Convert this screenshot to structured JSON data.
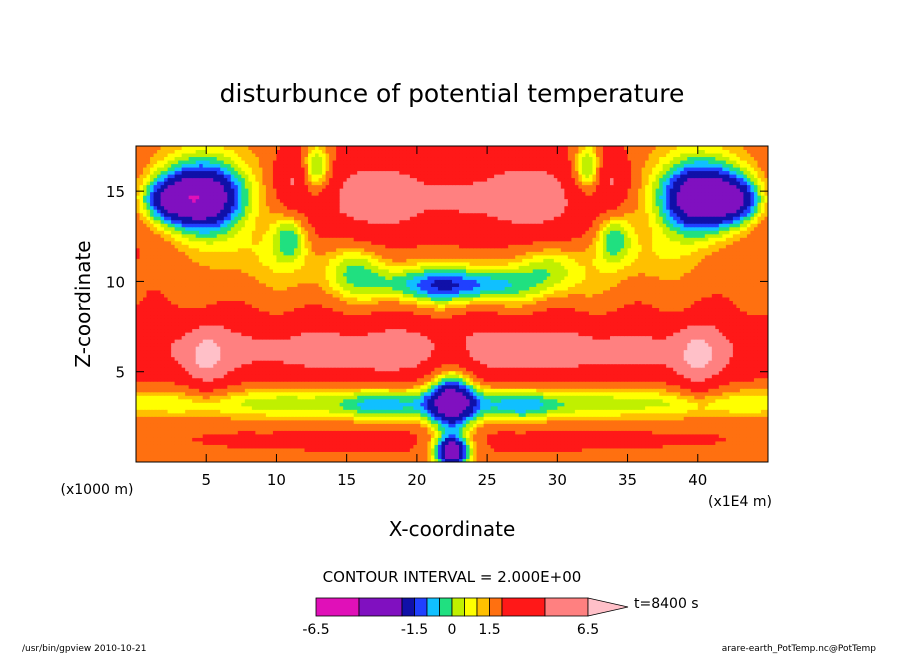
{
  "chart_data": {
    "type": "heatmap",
    "title": "disturbunce of potential temperature",
    "xlabel": "X-coordinate",
    "ylabel": "Z-coordinate",
    "x_unit": "(x1E4 m)",
    "y_unit": "(x1000 m)",
    "xlim": [
      0,
      45
    ],
    "ylim": [
      0,
      17.5
    ],
    "xticks": [
      5,
      10,
      15,
      20,
      25,
      30,
      35,
      40
    ],
    "yticks": [
      5,
      10,
      15
    ],
    "contour_interval_text": "CONTOUR INTERVAL = 2.000E+00",
    "time_text": "t=8400 s",
    "colorbar": {
      "levels": [
        -6.5,
        -4.5,
        -2.5,
        -1.5,
        -1,
        -0.5,
        0,
        0.5,
        1,
        1.5,
        2.5,
        4.5,
        6.5
      ],
      "colors": [
        "#e010b8",
        "#8010c0",
        "#1010a8",
        "#2040ff",
        "#10c0ff",
        "#20e080",
        "#c0f000",
        "#ffff00",
        "#ffc000",
        "#ff7010",
        "#ff1818",
        "#ff8080",
        "#ffc0c8"
      ],
      "tick_labels": [
        "-6.5",
        "-1.5",
        "0",
        "1.5",
        "6.5"
      ]
    },
    "blobs": [
      {
        "x": 0.0,
        "z": 14.6,
        "rx": 6.5,
        "rz": 4.0,
        "v": 2.0
      },
      {
        "x": 45.0,
        "z": 14.6,
        "rx": 6.5,
        "rz": 4.0,
        "v": 2.0
      },
      {
        "x": 3.5,
        "z": 15.0,
        "rx": 4.8,
        "rz": 3.0,
        "v": -3.0
      },
      {
        "x": 41.5,
        "z": 15.0,
        "rx": 4.8,
        "rz": 3.0,
        "v": -3.0
      },
      {
        "x": 4.8,
        "z": 14.6,
        "rx": 2.8,
        "rz": 1.8,
        "v": -4.5
      },
      {
        "x": 40.2,
        "z": 14.6,
        "rx": 2.8,
        "rz": 1.8,
        "v": -4.5
      },
      {
        "x": 2.0,
        "z": 14.5,
        "rx": 1.8,
        "rz": 1.2,
        "v": -2.5
      },
      {
        "x": 43.0,
        "z": 14.5,
        "rx": 1.8,
        "rz": 1.2,
        "v": -2.5
      },
      {
        "x": 22.5,
        "z": 9.8,
        "rx": 5.5,
        "rz": 1.0,
        "v": -2.8
      },
      {
        "x": 22.5,
        "z": 10.5,
        "rx": 10.5,
        "rz": 2.2,
        "v": -1.0
      },
      {
        "x": 15.5,
        "z": 11.0,
        "rx": 2.2,
        "rz": 1.5,
        "v": -1.6
      },
      {
        "x": 29.5,
        "z": 11.0,
        "rx": 2.2,
        "rz": 1.5,
        "v": -1.6
      },
      {
        "x": 11.0,
        "z": 12.6,
        "rx": 1.3,
        "rz": 1.5,
        "v": -2.4
      },
      {
        "x": 34.0,
        "z": 12.6,
        "rx": 1.3,
        "rz": 1.5,
        "v": -2.4
      },
      {
        "x": 12.8,
        "z": 16.2,
        "rx": 1.2,
        "rz": 1.5,
        "v": -3.5
      },
      {
        "x": 32.2,
        "z": 16.2,
        "rx": 1.2,
        "rz": 1.5,
        "v": -3.5
      },
      {
        "x": 8.5,
        "z": 11.5,
        "rx": 4.0,
        "rz": 1.5,
        "v": -0.7
      },
      {
        "x": 36.5,
        "z": 11.5,
        "rx": 4.0,
        "rz": 1.5,
        "v": -0.7
      },
      {
        "x": 17.0,
        "z": 14.6,
        "rx": 5.2,
        "rz": 2.8,
        "v": 3.6
      },
      {
        "x": 28.0,
        "z": 14.6,
        "rx": 5.2,
        "rz": 2.8,
        "v": 3.6
      },
      {
        "x": 11.2,
        "z": 15.8,
        "rx": 1.2,
        "rz": 1.8,
        "v": 2.4
      },
      {
        "x": 33.8,
        "z": 15.8,
        "rx": 1.2,
        "rz": 1.8,
        "v": 2.4
      },
      {
        "x": 22.5,
        "z": 14.5,
        "rx": 1.8,
        "rz": 3.5,
        "v": 0.5
      },
      {
        "x": 22.5,
        "z": 6.2,
        "rx": 30.0,
        "rz": 1.9,
        "v": 3.6
      },
      {
        "x": 5.0,
        "z": 5.8,
        "rx": 1.6,
        "rz": 1.9,
        "v": 3.0
      },
      {
        "x": 40.0,
        "z": 5.8,
        "rx": 1.6,
        "rz": 1.9,
        "v": 3.0
      },
      {
        "x": 17.5,
        "z": 6.0,
        "rx": 1.0,
        "rz": 0.7,
        "v": 1.0
      },
      {
        "x": 27.5,
        "z": 6.0,
        "rx": 1.0,
        "rz": 0.7,
        "v": 1.0
      },
      {
        "x": 22.5,
        "z": 3.3,
        "rx": 30.0,
        "rz": 1.1,
        "v": -2.4
      },
      {
        "x": 17.5,
        "z": 3.0,
        "rx": 2.2,
        "rz": 0.9,
        "v": -1.0
      },
      {
        "x": 27.5,
        "z": 3.0,
        "rx": 2.2,
        "rz": 0.9,
        "v": -1.0
      },
      {
        "x": 22.5,
        "z": 1.5,
        "rx": 30.0,
        "rz": 1.3,
        "v": 1.0
      },
      {
        "x": 22.5,
        "z": 3.5,
        "rx": 1.7,
        "rz": 2.8,
        "v": -4.0
      },
      {
        "x": 22.5,
        "z": 0.6,
        "rx": 1.2,
        "rz": 0.8,
        "v": -5.0
      }
    ]
  },
  "footer": {
    "left": "/usr/bin/gpview  2010-10-21",
    "right": "arare-earth_PotTemp.nc@PotTemp"
  }
}
